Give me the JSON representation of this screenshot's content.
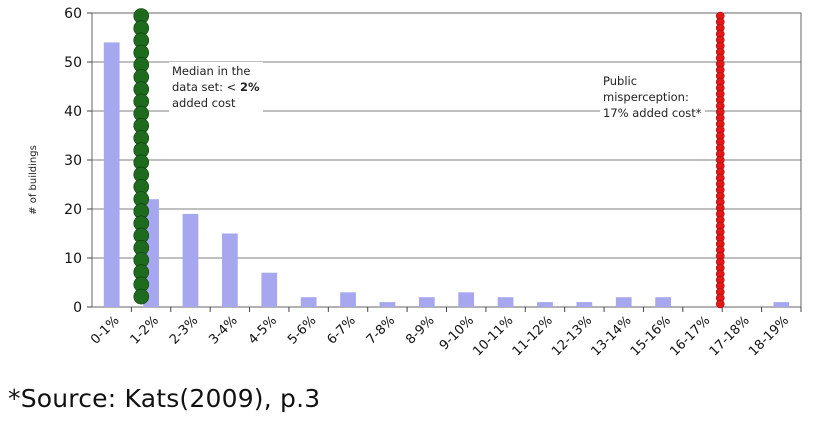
{
  "chart_data": {
    "type": "bar",
    "categories": [
      "0-1%",
      "1-2%",
      "2-3%",
      "3-4%",
      "4-5%",
      "5-6%",
      "6-7%",
      "7-8%",
      "8-9%",
      "9-10%",
      "10-11%",
      "11-12%",
      "12-13%",
      "13-14%",
      "15-16%",
      "16-17%",
      "17-18%",
      "18-19%"
    ],
    "values": [
      54,
      22,
      19,
      15,
      7,
      2,
      3,
      1,
      2,
      3,
      2,
      1,
      1,
      2,
      2,
      0,
      0,
      1
    ],
    "ylabel": "# of buildings",
    "ylim": [
      0,
      60
    ],
    "yticks": [
      0,
      10,
      20,
      30,
      40,
      50,
      60
    ],
    "grid": true,
    "bar_color": "#a7a7f0",
    "reference_lines": [
      {
        "at_category_boundary": 1.25,
        "color": "#1e6b1e",
        "style": "dotted-thick"
      },
      {
        "at_category_boundary": 15.95,
        "color": "#e01818",
        "style": "dotted-thick"
      }
    ],
    "annotations": {
      "median": {
        "line1": "Median in the",
        "line2_prefix": "data set: < ",
        "line2_bold": "2%",
        "line3": "added cost"
      },
      "public": {
        "line1": "Public",
        "line2": "misperception:",
        "line3": "17% added cost*"
      }
    }
  },
  "source_text": "*Source:  Kats(2009),  p.3"
}
